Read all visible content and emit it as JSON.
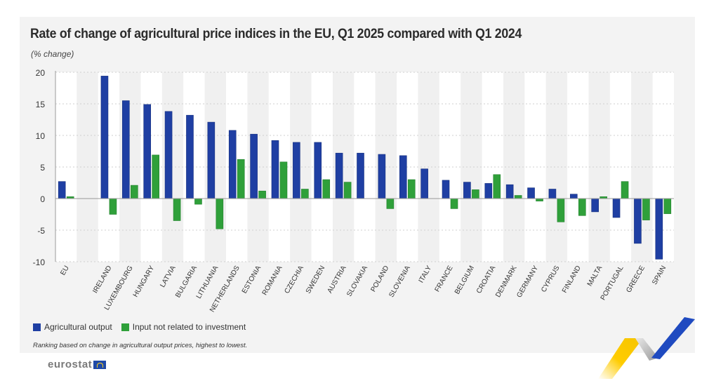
{
  "header": {
    "title": "Rate of change of agricultural price indices in the EU, Q1 2025 compared with Q1 2024",
    "unit": "(% change)"
  },
  "legend": [
    {
      "label": "Agricultural output",
      "color": "#1f3fa3"
    },
    {
      "label": "Input not related to investment",
      "color": "#2fa03a"
    }
  ],
  "note": "Ranking based on change in agricultural output prices, highest to lowest.",
  "footer": {
    "logo_text": "eurostat"
  },
  "chart_data": {
    "type": "bar",
    "title": "Rate of change of agricultural price indices in the EU, Q1 2025 compared with Q1 2024",
    "ylabel": "(% change)",
    "xlabel": "",
    "ylim": [
      -10,
      20
    ],
    "yticks": [
      20,
      15,
      10,
      5,
      0,
      -5,
      -10
    ],
    "grid": true,
    "legend_position": "bottom-left",
    "categories": [
      "EU",
      "",
      "IRELAND",
      "LUXEMBOURG",
      "HUNGARY",
      "LATVIA",
      "BULGARIA",
      "LITHUANIA",
      "NETHERLANDS",
      "ESTONIA",
      "ROMANIA",
      "CZECHIA",
      "SWEDEN",
      "AUSTRIA",
      "SLOVAKIA",
      "POLAND",
      "SLOVENIA",
      "ITALY",
      "FRANCE",
      "BELGIUM",
      "CROATIA",
      "DENMARK",
      "GERMANY",
      "CYPRUS",
      "FINLAND",
      "MALTA",
      "PORTUGAL",
      "GREECE",
      "SPAIN"
    ],
    "series": [
      {
        "name": "Agricultural output",
        "color": "#1f3fa3",
        "values": [
          2.7,
          null,
          19.4,
          15.5,
          14.9,
          13.8,
          13.2,
          12.1,
          10.8,
          10.2,
          9.2,
          8.9,
          8.9,
          7.2,
          7.2,
          7.0,
          6.8,
          4.7,
          2.9,
          2.6,
          2.4,
          2.2,
          1.7,
          1.5,
          0.7,
          -2.1,
          -3.0,
          -7.1,
          -9.6
        ]
      },
      {
        "name": "Input not related to investment",
        "color": "#2fa03a",
        "values": [
          0.3,
          null,
          -2.5,
          2.1,
          6.9,
          -3.5,
          -0.9,
          -4.8,
          6.2,
          1.2,
          5.8,
          1.5,
          3.0,
          2.6,
          null,
          -1.6,
          3.0,
          null,
          -1.6,
          1.4,
          3.8,
          0.5,
          -0.4,
          -3.7,
          -2.7,
          0.3,
          2.7,
          -3.4,
          -2.4
        ]
      }
    ]
  }
}
